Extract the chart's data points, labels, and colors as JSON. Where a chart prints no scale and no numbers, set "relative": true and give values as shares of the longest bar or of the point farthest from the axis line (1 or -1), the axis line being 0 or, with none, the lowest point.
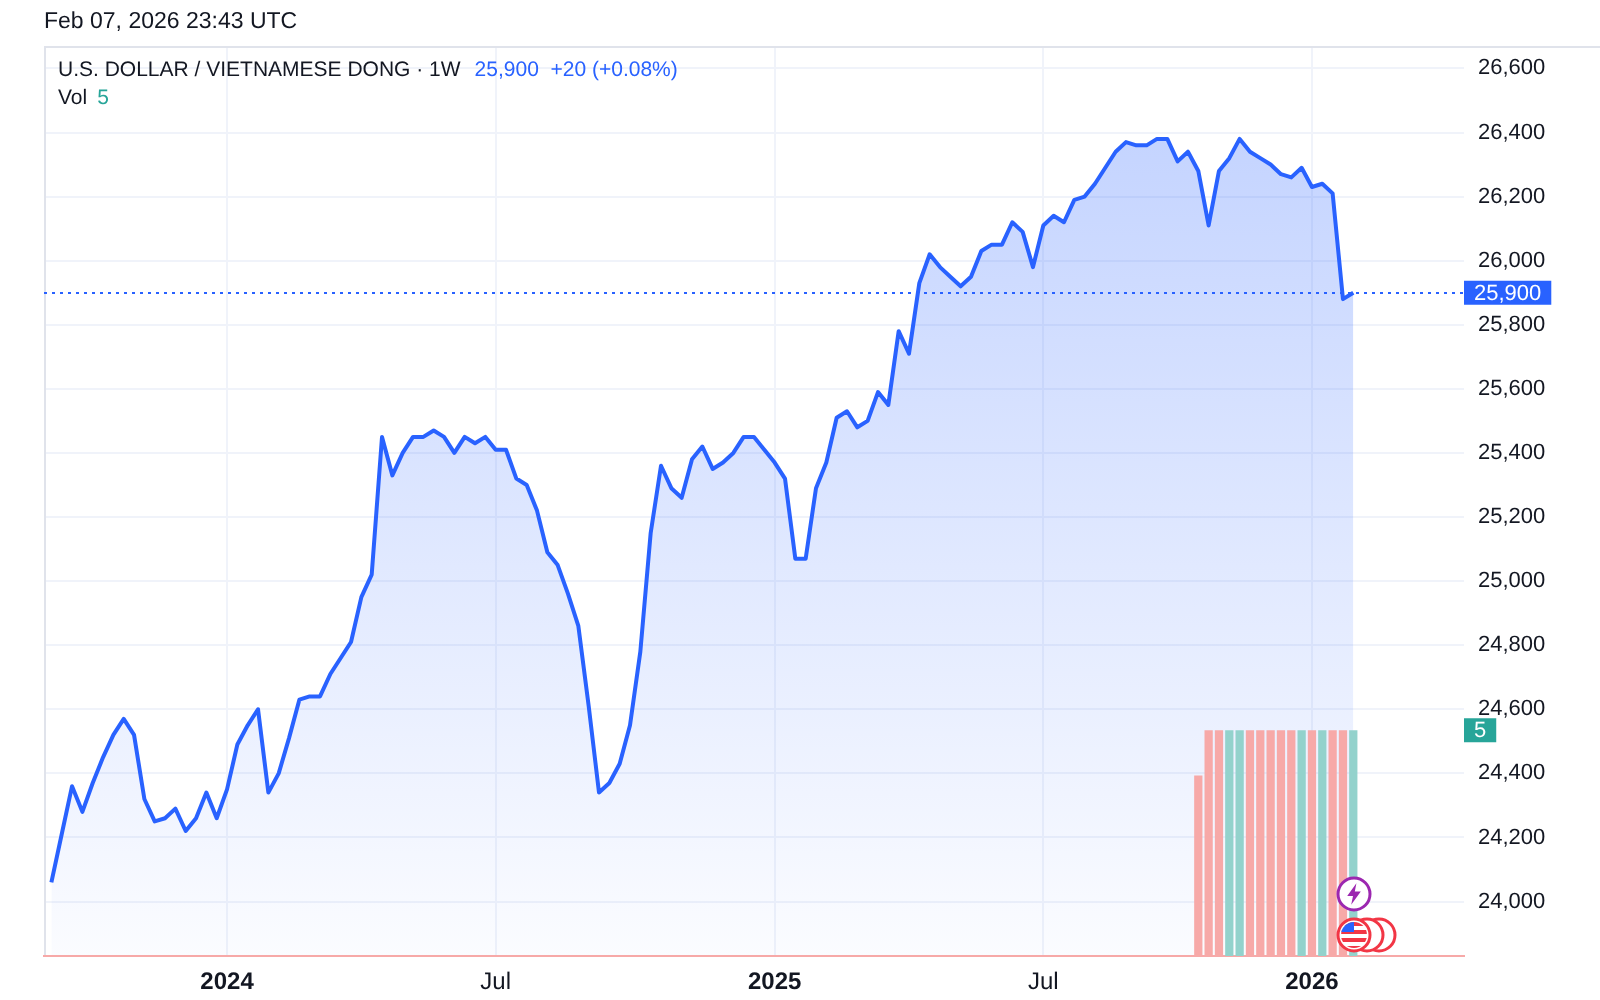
{
  "chart_data": [
    {
      "type": "area",
      "title": "U.S. DOLLAR / VIETNAMESE DONG · 1W",
      "subtitle": "25,900  +20 (+0.08%)",
      "annotations": [
        "Feb 07, 2026 23:43 UTC"
      ],
      "x": [
        "2023-09-04",
        "2023-09-11",
        "2023-09-18",
        "2023-09-25",
        "2023-10-02",
        "2023-10-09",
        "2023-10-16",
        "2023-10-23",
        "2023-10-30",
        "2023-11-06",
        "2023-11-13",
        "2023-11-20",
        "2023-11-27",
        "2023-12-04",
        "2023-12-11",
        "2023-12-18",
        "2023-12-25",
        "2024-01-01",
        "2024-01-08",
        "2024-01-15",
        "2024-01-22",
        "2024-01-29",
        "2024-02-05",
        "2024-02-12",
        "2024-02-19",
        "2024-02-26",
        "2024-03-04",
        "2024-03-11",
        "2024-03-18",
        "2024-03-25",
        "2024-04-01",
        "2024-04-08",
        "2024-04-15",
        "2024-04-22",
        "2024-04-29",
        "2024-05-06",
        "2024-05-13",
        "2024-05-20",
        "2024-05-27",
        "2024-06-03",
        "2024-06-10",
        "2024-06-17",
        "2024-06-24",
        "2024-07-01",
        "2024-07-08",
        "2024-07-15",
        "2024-07-22",
        "2024-07-29",
        "2024-08-05",
        "2024-08-12",
        "2024-08-19",
        "2024-08-26",
        "2024-09-02",
        "2024-09-09",
        "2024-09-16",
        "2024-09-23",
        "2024-09-30",
        "2024-10-07",
        "2024-10-14",
        "2024-10-21",
        "2024-10-28",
        "2024-11-04",
        "2024-11-11",
        "2024-11-18",
        "2024-11-25",
        "2024-12-02",
        "2024-12-09",
        "2024-12-16",
        "2024-12-23",
        "2024-12-30",
        "2025-01-06",
        "2025-01-13",
        "2025-01-20",
        "2025-01-27",
        "2025-02-03",
        "2025-02-10",
        "2025-02-17",
        "2025-02-24",
        "2025-03-03",
        "2025-03-10",
        "2025-03-17",
        "2025-03-24",
        "2025-03-31",
        "2025-04-07",
        "2025-04-14",
        "2025-04-21",
        "2025-04-28",
        "2025-05-05",
        "2025-05-12",
        "2025-05-19",
        "2025-05-26",
        "2025-06-02",
        "2025-06-09",
        "2025-06-16",
        "2025-06-23",
        "2025-06-30",
        "2025-07-07",
        "2025-07-14",
        "2025-07-21",
        "2025-07-28",
        "2025-08-04",
        "2025-08-11",
        "2025-08-18",
        "2025-08-25",
        "2025-09-01",
        "2025-09-08",
        "2025-09-15",
        "2025-09-22",
        "2025-09-29",
        "2025-10-06",
        "2025-10-13",
        "2025-10-20",
        "2025-10-27",
        "2025-11-03",
        "2025-11-10",
        "2025-11-17",
        "2025-11-24",
        "2025-12-01",
        "2025-12-08",
        "2025-12-15",
        "2025-12-22",
        "2025-12-29",
        "2026-01-05",
        "2026-01-12",
        "2026-01-19",
        "2026-01-26",
        "2026-02-02"
      ],
      "color": "#2962ff",
      "values": [
        24060,
        24210,
        24360,
        24280,
        24370,
        24450,
        24520,
        24570,
        24520,
        24320,
        24250,
        24260,
        24290,
        24220,
        24260,
        24340,
        24260,
        24350,
        24490,
        24550,
        24600,
        24340,
        24400,
        24510,
        24630,
        24640,
        24640,
        24710,
        24760,
        24810,
        24950,
        25020,
        25450,
        25330,
        25400,
        25450,
        25450,
        25470,
        25450,
        25400,
        25450,
        25430,
        25450,
        25410,
        25410,
        25320,
        25300,
        25220,
        25090,
        25050,
        24960,
        24860,
        24610,
        24340,
        24370,
        24430,
        24550,
        24780,
        25150,
        25360,
        25290,
        25260,
        25380,
        25420,
        25350,
        25370,
        25400,
        25450,
        25450,
        25410,
        25370,
        25320,
        25070,
        25070,
        25290,
        25370,
        25510,
        25530,
        25480,
        25500,
        25590,
        25550,
        25780,
        25710,
        25930,
        26020,
        25980,
        25950,
        25920,
        25950,
        26030,
        26050,
        26050,
        26120,
        26090,
        25980,
        26110,
        26140,
        26120,
        26190,
        26200,
        26240,
        26290,
        26340,
        26370,
        26360,
        26360,
        26380,
        26380,
        26310,
        26340,
        26280,
        26110,
        26280,
        26320,
        26380,
        26340,
        26320,
        26300,
        26270,
        26260,
        26290,
        26230,
        26240,
        26210,
        25880,
        25900
      ],
      "xlim": [
        "2023-08-30",
        "2026-04-18"
      ],
      "xticks": [
        {
          "value": "2024-01-01",
          "label": "2024"
        },
        {
          "value": "2024-07-01",
          "label": "Jul"
        },
        {
          "value": "2025-01-06",
          "label": "2025"
        },
        {
          "value": "2025-07-07",
          "label": "Jul"
        },
        {
          "value": "2026-01-05",
          "label": "2026"
        }
      ],
      "ylim": [
        23830,
        26670
      ],
      "yticks": [
        {
          "value": 24000,
          "label": "24,000"
        },
        {
          "value": 24200,
          "label": "24,200"
        },
        {
          "value": 24400,
          "label": "24,400"
        },
        {
          "value": 24600,
          "label": "24,600"
        },
        {
          "value": 24800,
          "label": "24,800"
        },
        {
          "value": 25000,
          "label": "25,000"
        },
        {
          "value": 25200,
          "label": "25,200"
        },
        {
          "value": 25400,
          "label": "25,400"
        },
        {
          "value": 25600,
          "label": "25,600"
        },
        {
          "value": 25800,
          "label": "25,800"
        },
        {
          "value": 26000,
          "label": "26,000"
        },
        {
          "value": 26200,
          "label": "26,200"
        },
        {
          "value": 26400,
          "label": "26,400"
        },
        {
          "value": 26600,
          "label": "26,600"
        }
      ],
      "ref_lines": [
        {
          "axis": "y",
          "value": 25900,
          "label": "25,900",
          "color": "#2962ff",
          "line_style": "dotted"
        }
      ],
      "grid": true
    },
    {
      "type": "bar",
      "relative": true,
      "annotations": [
        "Vol",
        "5",
        "5"
      ],
      "x": [
        "2025-10-20",
        "2025-10-27",
        "2025-11-03",
        "2025-11-10",
        "2025-11-17",
        "2025-11-24",
        "2025-12-01",
        "2025-12-08",
        "2025-12-15",
        "2025-12-22",
        "2025-12-29",
        "2026-01-05",
        "2026-01-12",
        "2026-01-19",
        "2026-01-26",
        "2026-02-02"
      ],
      "values": [
        0.8,
        1,
        1,
        1,
        1,
        1,
        1,
        1,
        1,
        1,
        1,
        1,
        1,
        1,
        1,
        1
      ],
      "colors": [
        "#f7a9a8",
        "#f7a9a8",
        "#f7a9a8",
        "#93d2cc",
        "#93d2cc",
        "#f7a9a8",
        "#f7a9a8",
        "#f7a9a8",
        "#f7a9a8",
        "#f7a9a8",
        "#93d2cc",
        "#f7a9a8",
        "#93d2cc",
        "#f7a9a8",
        "#f7a9a8",
        "#93d2cc"
      ],
      "xlim": [
        "2023-08-30",
        "2026-04-18"
      ]
    }
  ]
}
